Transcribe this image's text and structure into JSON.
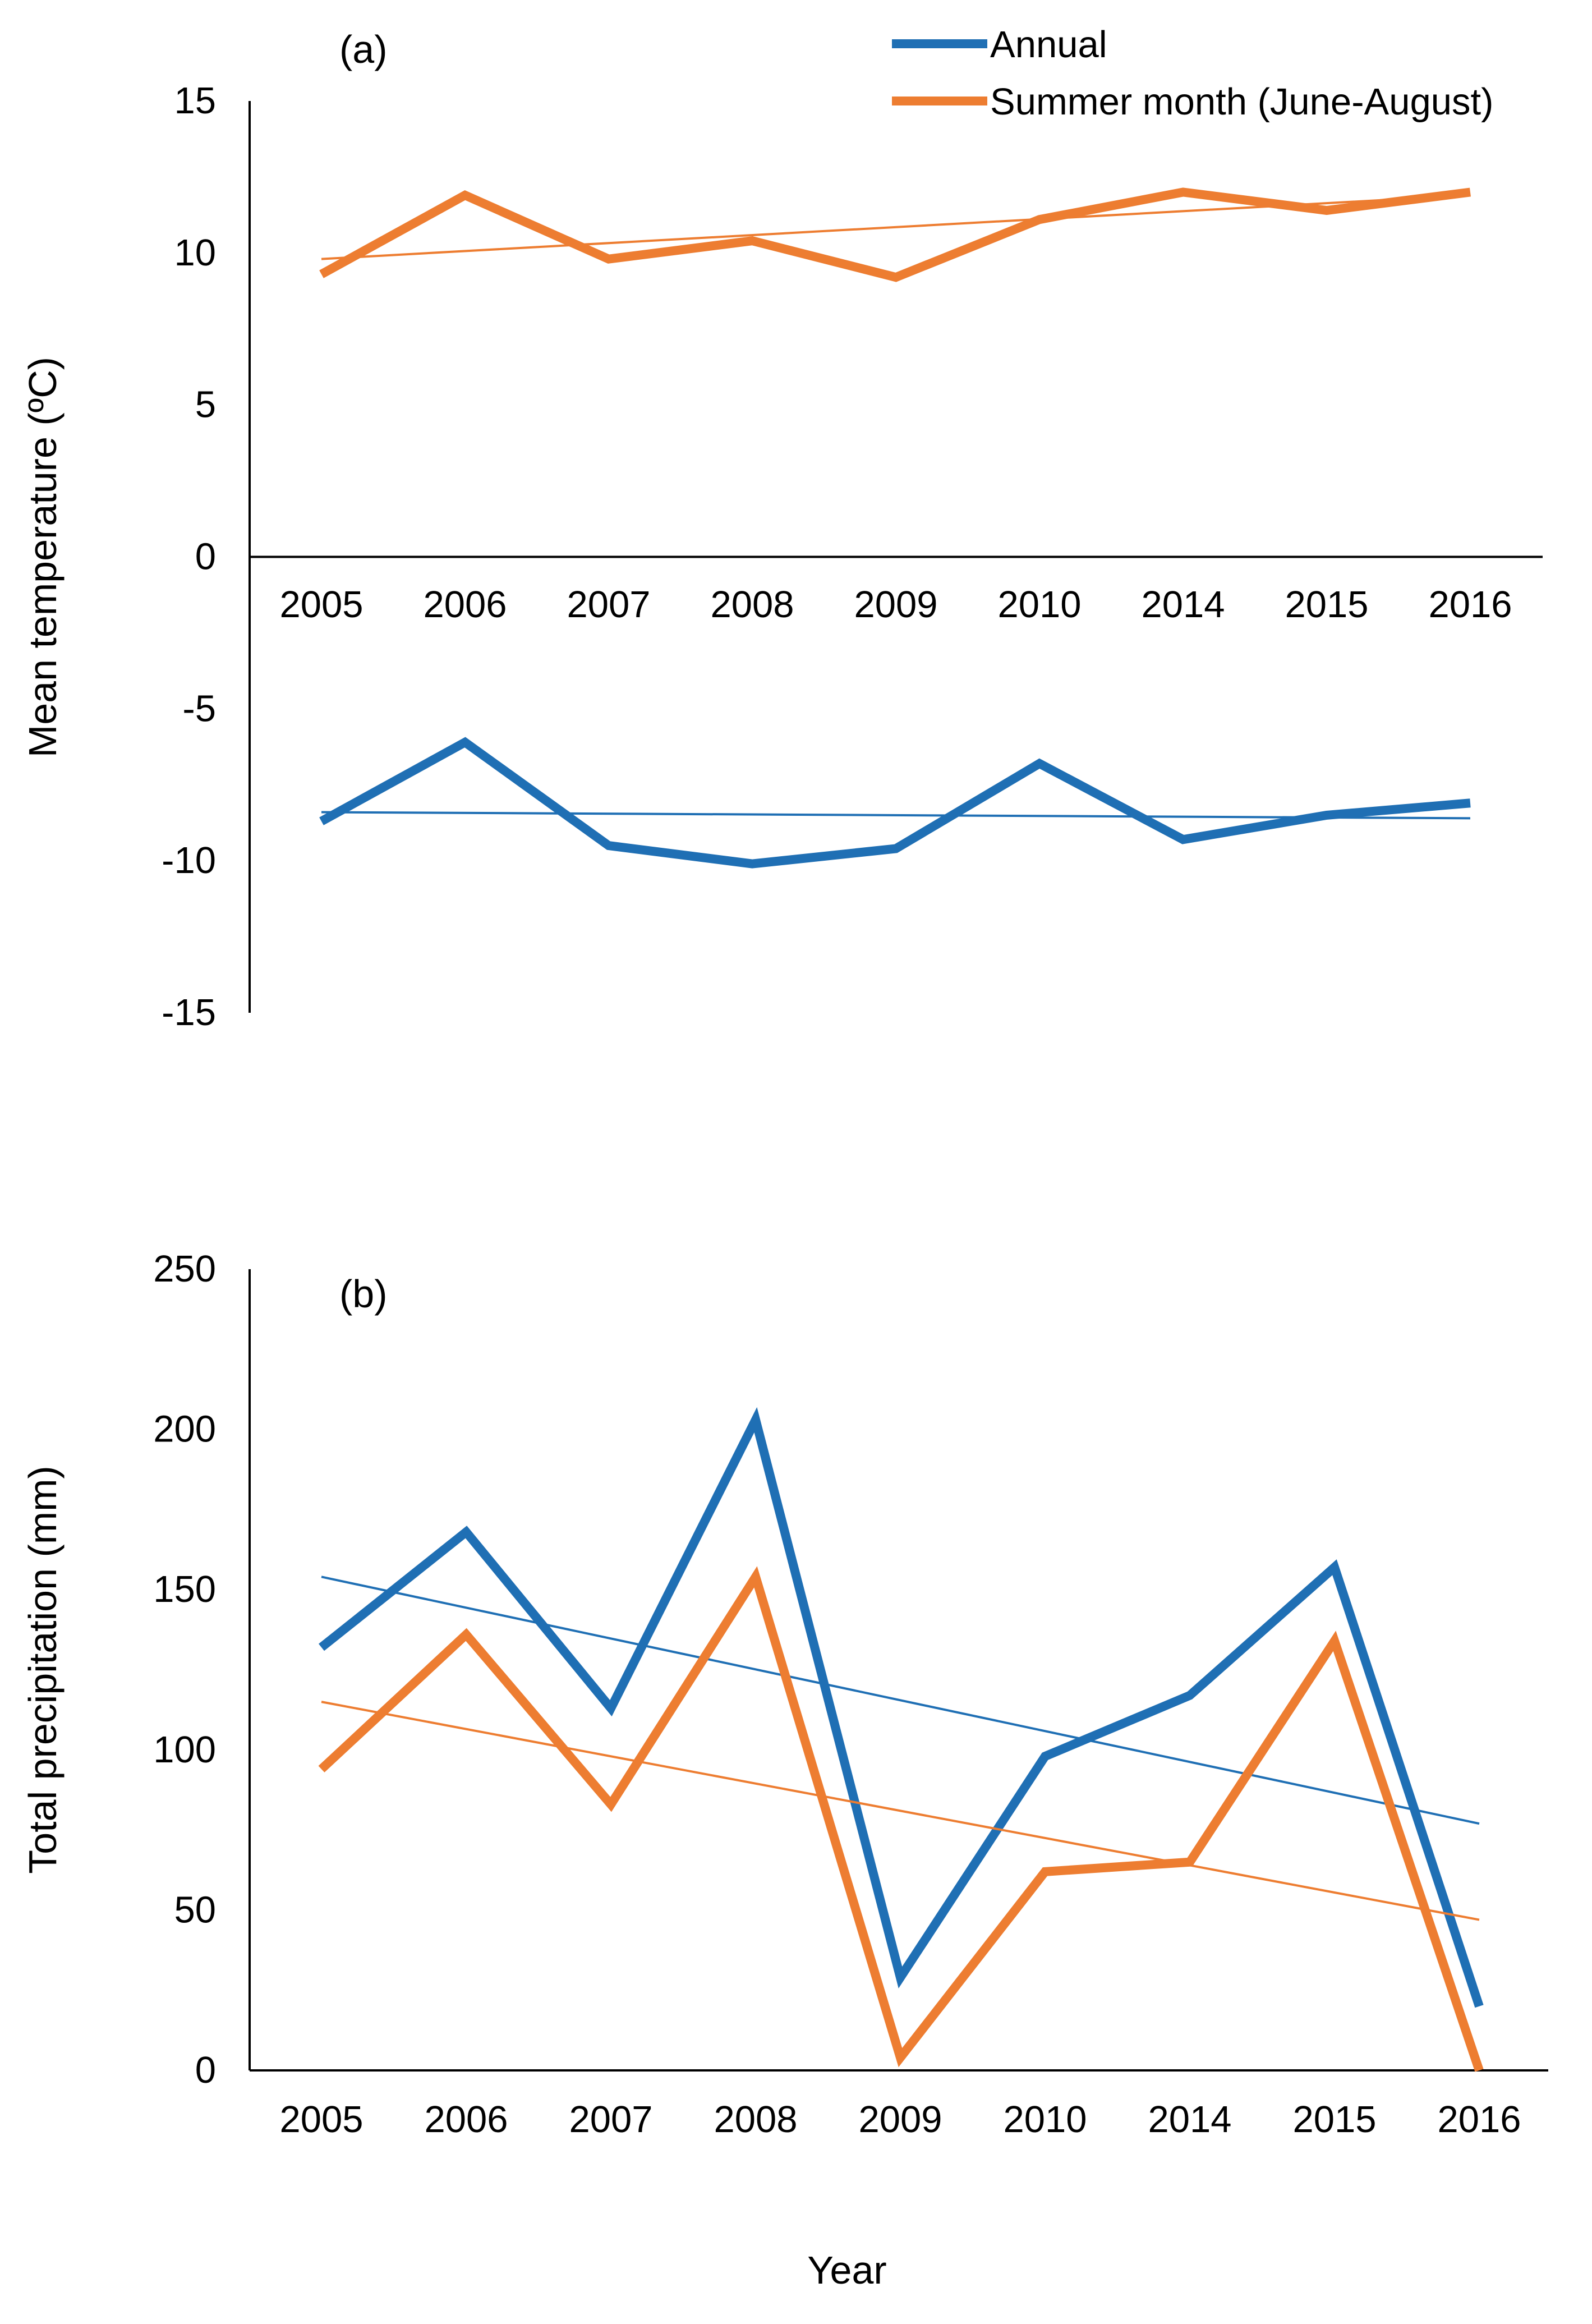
{
  "colors": {
    "annual": "#1f6fb4",
    "summer": "#ed7d31",
    "axis": "#000000"
  },
  "legend": {
    "position": "top-right",
    "items": [
      {
        "label": "Annual",
        "color": "#1f6fb4"
      },
      {
        "label": "Summer month (June-August)",
        "color": "#ed7d31"
      }
    ]
  },
  "common": {
    "xlabel": "Year"
  },
  "chart_data": [
    {
      "type": "line",
      "panel_label": "(a)",
      "ylabel": "Mean temperature (ºC)",
      "ylim": [
        -15,
        15
      ],
      "yticks": [
        "15",
        "10",
        "5",
        "0",
        "-5",
        "-10",
        "-15"
      ],
      "categories": [
        "2005",
        "2006",
        "2007",
        "2008",
        "2009",
        "2010",
        "2014",
        "2015",
        "2016"
      ],
      "x_axis_at": 0,
      "series": [
        {
          "name": "Annual",
          "color": "#1f6fb4",
          "values": [
            -8.7,
            -6.1,
            -9.5,
            -10.1,
            -9.6,
            -6.8,
            -9.3,
            -8.5,
            -8.1
          ],
          "trend": [
            -8.4,
            -8.6
          ]
        },
        {
          "name": "Summer month (June-August)",
          "color": "#ed7d31",
          "values": [
            9.3,
            11.9,
            9.8,
            10.4,
            9.2,
            11.1,
            12.0,
            11.4,
            12.0
          ],
          "trend": [
            9.8,
            11.9
          ]
        }
      ]
    },
    {
      "type": "line",
      "panel_label": "(b)",
      "ylabel": "Total precipitation (mm)",
      "ylim": [
        0,
        250
      ],
      "yticks": [
        "250",
        "200",
        "150",
        "100",
        "50",
        "0"
      ],
      "categories": [
        "2005",
        "2006",
        "2007",
        "2008",
        "2009",
        "2010",
        "2014",
        "2015",
        "2016"
      ],
      "x_axis_at": 0,
      "series": [
        {
          "name": "Annual",
          "color": "#1f6fb4",
          "values": [
            132,
            168,
            113,
            203,
            29,
            98,
            117,
            157,
            20
          ],
          "trend": [
            154,
            77
          ]
        },
        {
          "name": "Summer month (June-August)",
          "color": "#ed7d31",
          "values": [
            94,
            136,
            83,
            154,
            4,
            62,
            65,
            134,
            0
          ],
          "trend": [
            115,
            47
          ]
        }
      ]
    }
  ]
}
